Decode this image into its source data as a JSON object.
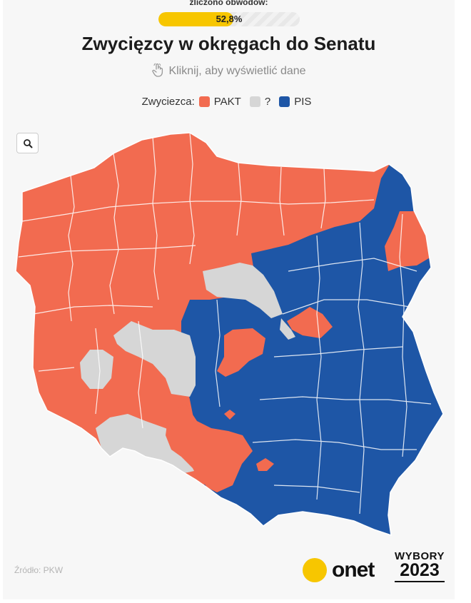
{
  "progress": {
    "label": "zliczono obwodów:",
    "value_text": "52,8%",
    "fraction": 0.528
  },
  "title": "Zwycięzcy w okręgach do Senatu",
  "subtitle": "Kliknij, aby wyświetlić dane",
  "legend": {
    "label": "Zwyciezca:",
    "items": [
      {
        "name": "PAKT",
        "color": "#f26b50"
      },
      {
        "name": "?",
        "color": "#d6d6d6"
      },
      {
        "name": "PIS",
        "color": "#1e56a6"
      }
    ]
  },
  "map": {
    "country": "Poland",
    "colors": {
      "pakt": "#f26b50",
      "undecided": "#d6d6d6",
      "pis": "#1e56a6",
      "borders": "#ffffff"
    }
  },
  "source": "Źródło: PKW",
  "branding": {
    "onet": "onet",
    "wybory_line1": "WYBORY",
    "wybory_line2": "2023"
  },
  "icons": {
    "zoom": "search-icon",
    "hint": "pointer-hand-icon"
  }
}
